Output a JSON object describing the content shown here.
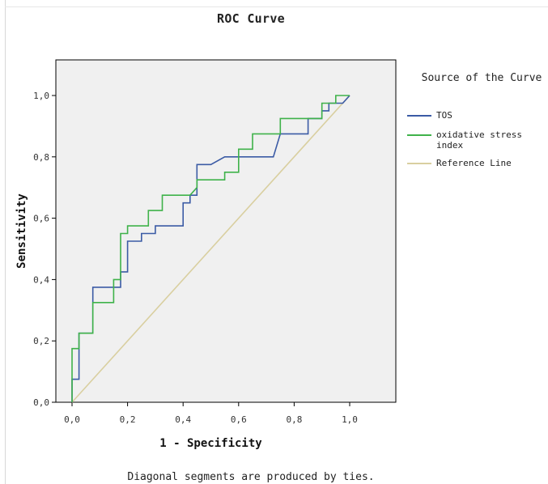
{
  "chart_data": {
    "type": "line",
    "title": "ROC Curve",
    "xlabel": "1 - Specificity",
    "ylabel": "Sensitivity",
    "xlim": [
      0,
      1
    ],
    "ylim": [
      0,
      1.1
    ],
    "x_ticks": [
      "0,0",
      "0,2",
      "0,4",
      "0,6",
      "0,8",
      "1,0"
    ],
    "y_ticks": [
      "0,0",
      "0,2",
      "0,4",
      "0,6",
      "0,8",
      "1,0"
    ],
    "grid": false,
    "legend_title": "Source of the Curve",
    "legend_position": "right",
    "series": [
      {
        "name": "TOS",
        "color": "#3b5ba5",
        "step": true,
        "points": [
          [
            0,
            0
          ],
          [
            0,
            0.075
          ],
          [
            0.025,
            0.075
          ],
          [
            0.025,
            0.225
          ],
          [
            0.075,
            0.225
          ],
          [
            0.075,
            0.375
          ],
          [
            0.175,
            0.375
          ],
          [
            0.175,
            0.425
          ],
          [
            0.2,
            0.425
          ],
          [
            0.2,
            0.525
          ],
          [
            0.25,
            0.525
          ],
          [
            0.25,
            0.55
          ],
          [
            0.3,
            0.55
          ],
          [
            0.3,
            0.575
          ],
          [
            0.4,
            0.575
          ],
          [
            0.4,
            0.65
          ],
          [
            0.425,
            0.65
          ],
          [
            0.425,
            0.675
          ],
          [
            0.45,
            0.675
          ],
          [
            0.45,
            0.775
          ],
          [
            0.5,
            0.775
          ],
          [
            0.55,
            0.8
          ],
          [
            0.725,
            0.8
          ],
          [
            0.75,
            0.875
          ],
          [
            0.85,
            0.875
          ],
          [
            0.85,
            0.925
          ],
          [
            0.9,
            0.925
          ],
          [
            0.9,
            0.95
          ],
          [
            0.925,
            0.95
          ],
          [
            0.925,
            0.975
          ],
          [
            0.975,
            0.975
          ],
          [
            1,
            1
          ]
        ]
      },
      {
        "name": "oxidative stress index",
        "color": "#3fb24a",
        "step": true,
        "points": [
          [
            0,
            0
          ],
          [
            0,
            0.175
          ],
          [
            0.025,
            0.175
          ],
          [
            0.025,
            0.225
          ],
          [
            0.075,
            0.225
          ],
          [
            0.075,
            0.325
          ],
          [
            0.15,
            0.325
          ],
          [
            0.15,
            0.4
          ],
          [
            0.175,
            0.4
          ],
          [
            0.175,
            0.55
          ],
          [
            0.2,
            0.55
          ],
          [
            0.2,
            0.575
          ],
          [
            0.275,
            0.575
          ],
          [
            0.275,
            0.625
          ],
          [
            0.325,
            0.625
          ],
          [
            0.325,
            0.675
          ],
          [
            0.425,
            0.675
          ],
          [
            0.45,
            0.7
          ],
          [
            0.45,
            0.725
          ],
          [
            0.55,
            0.725
          ],
          [
            0.55,
            0.75
          ],
          [
            0.6,
            0.75
          ],
          [
            0.6,
            0.825
          ],
          [
            0.65,
            0.825
          ],
          [
            0.65,
            0.875
          ],
          [
            0.75,
            0.875
          ],
          [
            0.75,
            0.925
          ],
          [
            0.9,
            0.925
          ],
          [
            0.9,
            0.975
          ],
          [
            0.95,
            0.975
          ],
          [
            0.95,
            1
          ],
          [
            1,
            1
          ]
        ]
      },
      {
        "name": "Reference Line",
        "color": "#d9cfa0",
        "step": false,
        "points": [
          [
            0,
            0
          ],
          [
            1,
            1
          ]
        ]
      }
    ],
    "footnote": "Diagonal segments are produced by ties."
  }
}
